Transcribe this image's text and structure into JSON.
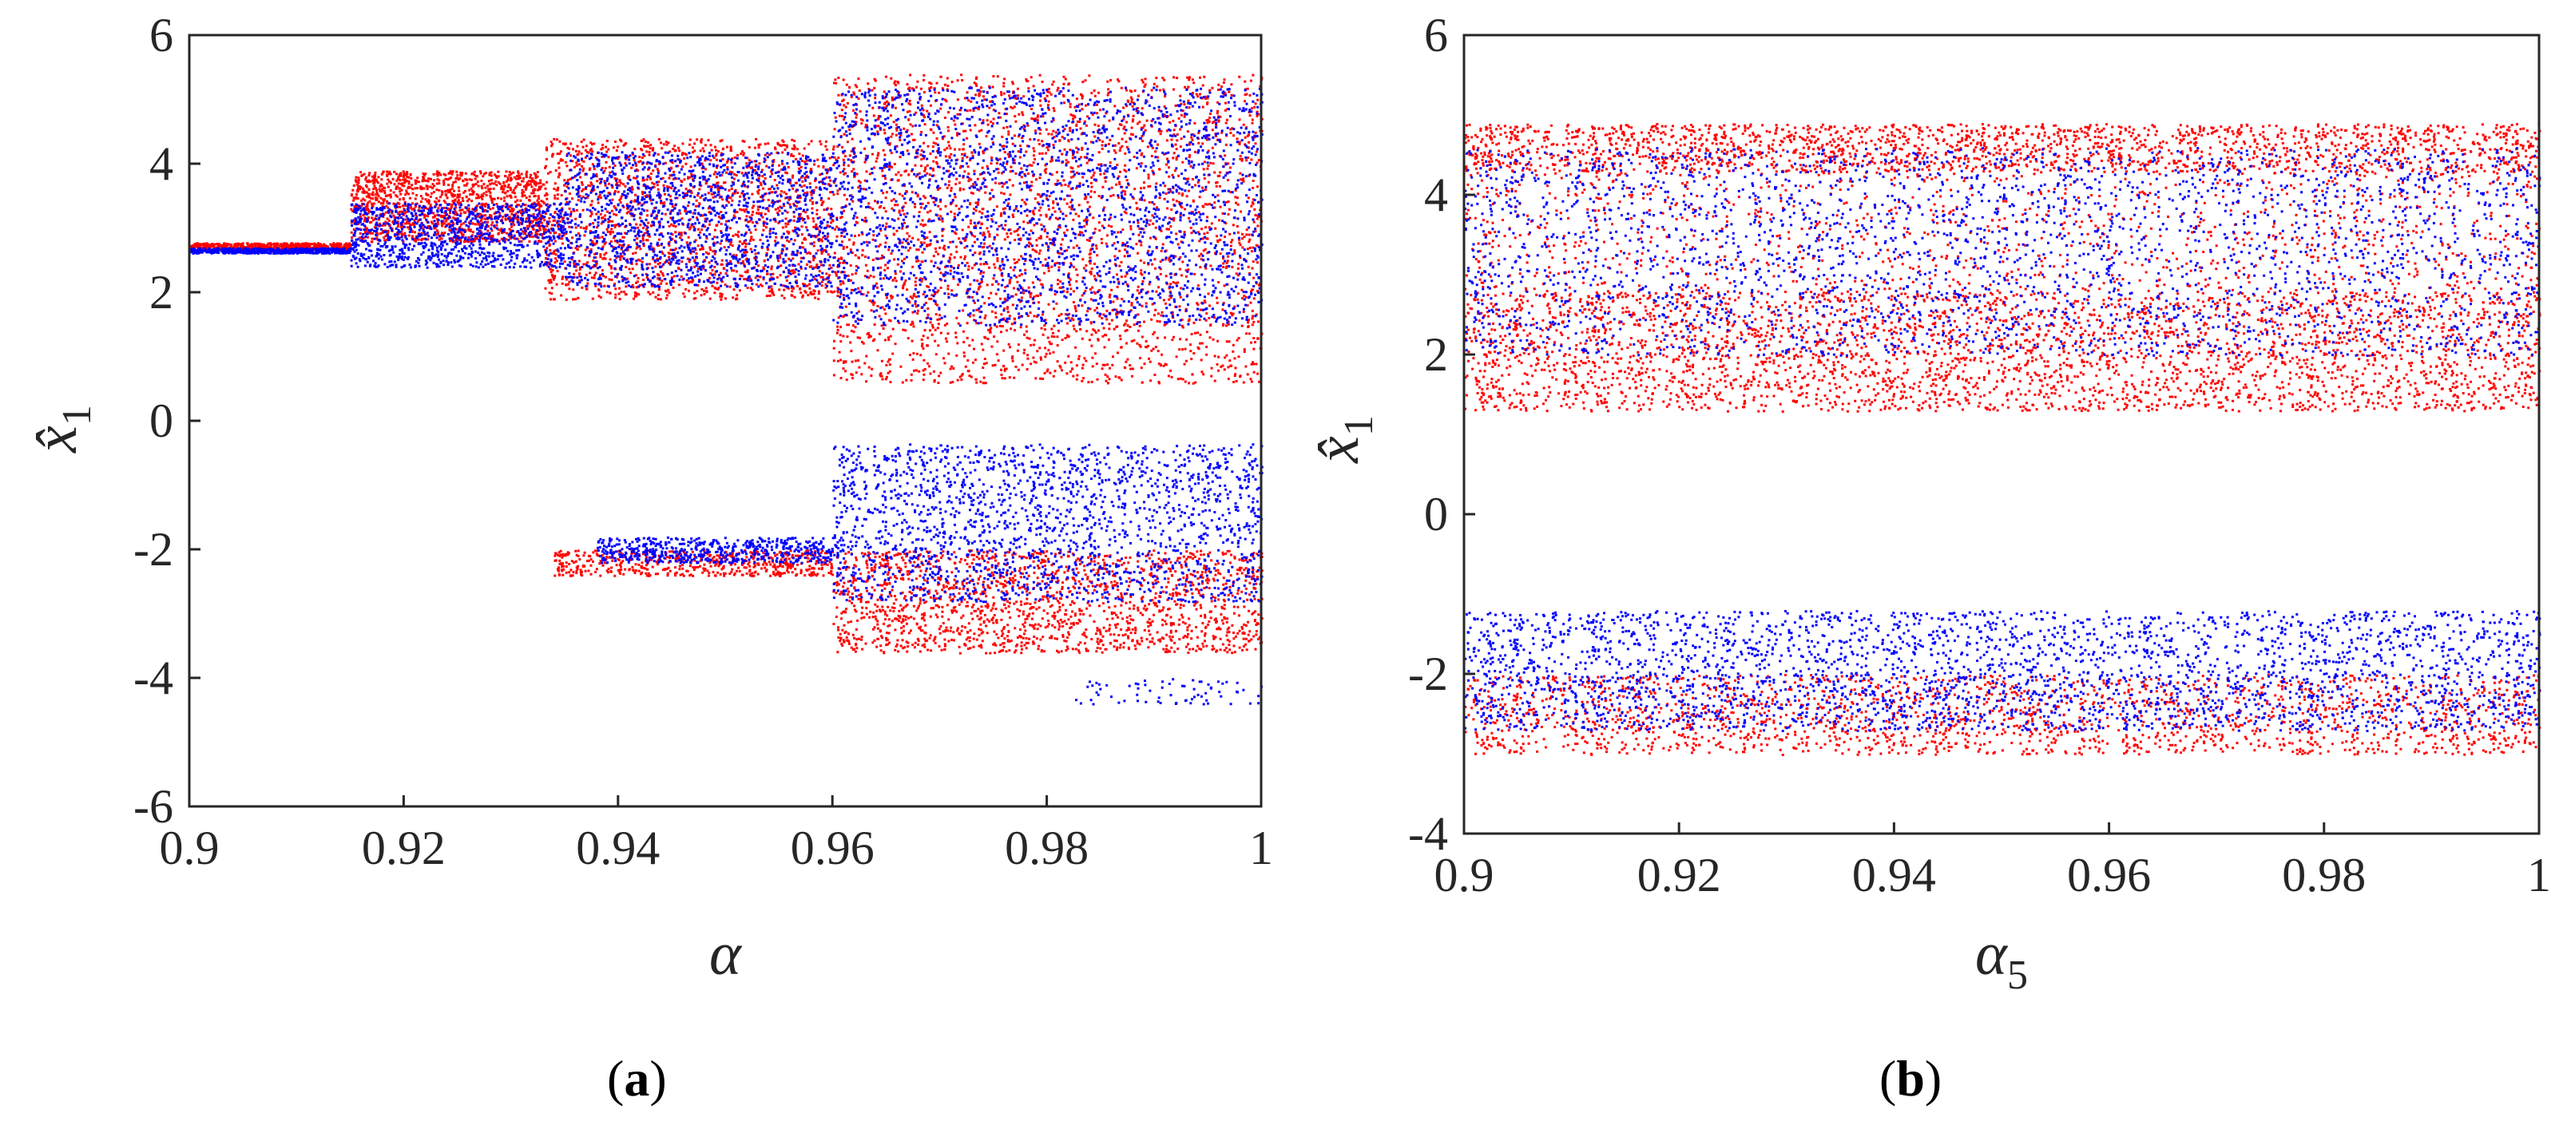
{
  "chart_data": [
    {
      "type": "scatter",
      "panel": "a",
      "caption_open": "(",
      "caption_letter": "a",
      "caption_close": ")",
      "xlabel": "α",
      "ylabel_base": "x̂",
      "ylabel_sub": "1",
      "xlim": [
        0.9,
        1.0
      ],
      "ylim": [
        -6,
        6
      ],
      "xticks": [
        0.9,
        0.92,
        0.94,
        0.96,
        0.98,
        1
      ],
      "xtick_labels": [
        "0.9",
        "0.92",
        "0.94",
        "0.96",
        "0.98",
        "1"
      ],
      "yticks": [
        -6,
        -4,
        -2,
        0,
        2,
        4,
        6
      ],
      "ytick_labels": [
        "-6",
        "-4",
        "-2",
        "0",
        "2",
        "4",
        "6"
      ],
      "colors": {
        "series1": "#ff0000",
        "series2": "#0000ff"
      },
      "series": [
        {
          "name": "red",
          "color": "#ff0000",
          "regions": [
            {
              "x0": 0.9,
              "x1": 0.915,
              "y0": 2.68,
              "y1": 2.78,
              "density": 0.4
            },
            {
              "x0": 0.915,
              "x1": 0.933,
              "y0": 2.8,
              "y1": 3.9,
              "density": 0.9
            },
            {
              "x0": 0.933,
              "x1": 0.96,
              "y0": 1.9,
              "y1": 4.4,
              "density": 1.2
            },
            {
              "x0": 0.96,
              "x1": 1.0,
              "y0": 0.6,
              "y1": 5.4,
              "density": 2.0
            },
            {
              "x0": 0.934,
              "x1": 0.96,
              "y0": -2.4,
              "y1": -2.0,
              "density": 0.4
            },
            {
              "x0": 0.96,
              "x1": 1.0,
              "y0": -3.6,
              "y1": -2.0,
              "density": 1.2
            }
          ]
        },
        {
          "name": "blue",
          "color": "#0000ff",
          "regions": [
            {
              "x0": 0.9,
              "x1": 0.915,
              "y0": 2.62,
              "y1": 2.7,
              "density": 0.4
            },
            {
              "x0": 0.915,
              "x1": 0.935,
              "y0": 2.4,
              "y1": 3.4,
              "density": 0.7
            },
            {
              "x0": 0.935,
              "x1": 0.96,
              "y0": 2.1,
              "y1": 4.2,
              "density": 1.0
            },
            {
              "x0": 0.96,
              "x1": 1.0,
              "y0": 1.5,
              "y1": 5.2,
              "density": 1.6
            },
            {
              "x0": 0.938,
              "x1": 0.96,
              "y0": -2.2,
              "y1": -1.8,
              "density": 0.4
            },
            {
              "x0": 0.96,
              "x1": 1.0,
              "y0": -2.8,
              "y1": -0.35,
              "density": 1.4
            },
            {
              "x0": 0.982,
              "x1": 1.0,
              "y0": -4.4,
              "y1": -4.0,
              "density": 0.05
            }
          ]
        }
      ]
    },
    {
      "type": "scatter",
      "panel": "b",
      "caption_open": "(",
      "caption_letter": "b",
      "caption_close": ")",
      "xlabel": "α",
      "xlabel_sub": "5",
      "ylabel_base": "x̂",
      "ylabel_sub": "1",
      "xlim": [
        0.9,
        1.0
      ],
      "ylim": [
        -4,
        6
      ],
      "xticks": [
        0.9,
        0.92,
        0.94,
        0.96,
        0.98,
        1
      ],
      "xtick_labels": [
        "0.9",
        "0.92",
        "0.94",
        "0.96",
        "0.98",
        "1"
      ],
      "yticks": [
        -4,
        -2,
        0,
        2,
        4,
        6
      ],
      "ytick_labels": [
        "-4",
        "-2",
        "0",
        "2",
        "4",
        "6"
      ],
      "colors": {
        "series1": "#ff0000",
        "series2": "#0000ff"
      },
      "series": [
        {
          "name": "red",
          "color": "#ff0000",
          "regions": [
            {
              "x0": 0.9,
              "x1": 1.0,
              "y0": 1.3,
              "y1": 2.8,
              "density": 2.4
            },
            {
              "x0": 0.9,
              "x1": 1.0,
              "y0": 4.3,
              "y1": 4.9,
              "density": 1.4
            },
            {
              "x0": 0.9,
              "x1": 1.0,
              "y0": 2.8,
              "y1": 4.3,
              "density": 0.8
            },
            {
              "x0": 0.9,
              "x1": 1.0,
              "y0": -3.0,
              "y1": -2.0,
              "density": 1.4
            }
          ]
        },
        {
          "name": "blue",
          "color": "#0000ff",
          "regions": [
            {
              "x0": 0.9,
              "x1": 1.0,
              "y0": 2.0,
              "y1": 4.6,
              "density": 2.0
            },
            {
              "x0": 0.9,
              "x1": 1.0,
              "y0": -2.7,
              "y1": -1.2,
              "density": 2.2
            }
          ]
        }
      ]
    }
  ]
}
